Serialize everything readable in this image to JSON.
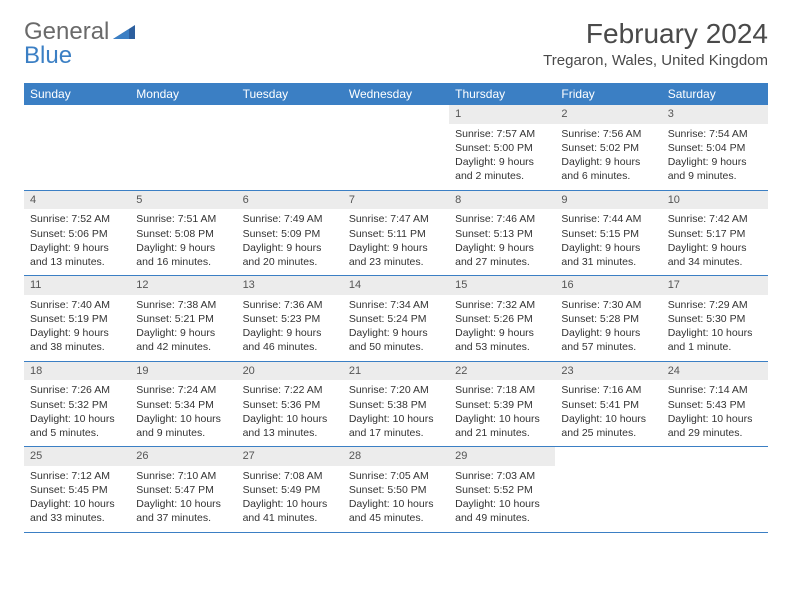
{
  "logo": {
    "general": "General",
    "blue": "Blue"
  },
  "title": "February 2024",
  "location": "Tregaron, Wales, United Kingdom",
  "colors": {
    "header_bg": "#3b7fc4",
    "header_text": "#ffffff",
    "daynum_bg": "#ececec",
    "daynum_text": "#555555",
    "body_text": "#333333",
    "border": "#3b7fc4",
    "page_bg": "#ffffff"
  },
  "dow": [
    "Sunday",
    "Monday",
    "Tuesday",
    "Wednesday",
    "Thursday",
    "Friday",
    "Saturday"
  ],
  "weeks": [
    [
      null,
      null,
      null,
      null,
      {
        "n": "1",
        "sunrise": "Sunrise: 7:57 AM",
        "sunset": "Sunset: 5:00 PM",
        "daylight": "Daylight: 9 hours and 2 minutes."
      },
      {
        "n": "2",
        "sunrise": "Sunrise: 7:56 AM",
        "sunset": "Sunset: 5:02 PM",
        "daylight": "Daylight: 9 hours and 6 minutes."
      },
      {
        "n": "3",
        "sunrise": "Sunrise: 7:54 AM",
        "sunset": "Sunset: 5:04 PM",
        "daylight": "Daylight: 9 hours and 9 minutes."
      }
    ],
    [
      {
        "n": "4",
        "sunrise": "Sunrise: 7:52 AM",
        "sunset": "Sunset: 5:06 PM",
        "daylight": "Daylight: 9 hours and 13 minutes."
      },
      {
        "n": "5",
        "sunrise": "Sunrise: 7:51 AM",
        "sunset": "Sunset: 5:08 PM",
        "daylight": "Daylight: 9 hours and 16 minutes."
      },
      {
        "n": "6",
        "sunrise": "Sunrise: 7:49 AM",
        "sunset": "Sunset: 5:09 PM",
        "daylight": "Daylight: 9 hours and 20 minutes."
      },
      {
        "n": "7",
        "sunrise": "Sunrise: 7:47 AM",
        "sunset": "Sunset: 5:11 PM",
        "daylight": "Daylight: 9 hours and 23 minutes."
      },
      {
        "n": "8",
        "sunrise": "Sunrise: 7:46 AM",
        "sunset": "Sunset: 5:13 PM",
        "daylight": "Daylight: 9 hours and 27 minutes."
      },
      {
        "n": "9",
        "sunrise": "Sunrise: 7:44 AM",
        "sunset": "Sunset: 5:15 PM",
        "daylight": "Daylight: 9 hours and 31 minutes."
      },
      {
        "n": "10",
        "sunrise": "Sunrise: 7:42 AM",
        "sunset": "Sunset: 5:17 PM",
        "daylight": "Daylight: 9 hours and 34 minutes."
      }
    ],
    [
      {
        "n": "11",
        "sunrise": "Sunrise: 7:40 AM",
        "sunset": "Sunset: 5:19 PM",
        "daylight": "Daylight: 9 hours and 38 minutes."
      },
      {
        "n": "12",
        "sunrise": "Sunrise: 7:38 AM",
        "sunset": "Sunset: 5:21 PM",
        "daylight": "Daylight: 9 hours and 42 minutes."
      },
      {
        "n": "13",
        "sunrise": "Sunrise: 7:36 AM",
        "sunset": "Sunset: 5:23 PM",
        "daylight": "Daylight: 9 hours and 46 minutes."
      },
      {
        "n": "14",
        "sunrise": "Sunrise: 7:34 AM",
        "sunset": "Sunset: 5:24 PM",
        "daylight": "Daylight: 9 hours and 50 minutes."
      },
      {
        "n": "15",
        "sunrise": "Sunrise: 7:32 AM",
        "sunset": "Sunset: 5:26 PM",
        "daylight": "Daylight: 9 hours and 53 minutes."
      },
      {
        "n": "16",
        "sunrise": "Sunrise: 7:30 AM",
        "sunset": "Sunset: 5:28 PM",
        "daylight": "Daylight: 9 hours and 57 minutes."
      },
      {
        "n": "17",
        "sunrise": "Sunrise: 7:29 AM",
        "sunset": "Sunset: 5:30 PM",
        "daylight": "Daylight: 10 hours and 1 minute."
      }
    ],
    [
      {
        "n": "18",
        "sunrise": "Sunrise: 7:26 AM",
        "sunset": "Sunset: 5:32 PM",
        "daylight": "Daylight: 10 hours and 5 minutes."
      },
      {
        "n": "19",
        "sunrise": "Sunrise: 7:24 AM",
        "sunset": "Sunset: 5:34 PM",
        "daylight": "Daylight: 10 hours and 9 minutes."
      },
      {
        "n": "20",
        "sunrise": "Sunrise: 7:22 AM",
        "sunset": "Sunset: 5:36 PM",
        "daylight": "Daylight: 10 hours and 13 minutes."
      },
      {
        "n": "21",
        "sunrise": "Sunrise: 7:20 AM",
        "sunset": "Sunset: 5:38 PM",
        "daylight": "Daylight: 10 hours and 17 minutes."
      },
      {
        "n": "22",
        "sunrise": "Sunrise: 7:18 AM",
        "sunset": "Sunset: 5:39 PM",
        "daylight": "Daylight: 10 hours and 21 minutes."
      },
      {
        "n": "23",
        "sunrise": "Sunrise: 7:16 AM",
        "sunset": "Sunset: 5:41 PM",
        "daylight": "Daylight: 10 hours and 25 minutes."
      },
      {
        "n": "24",
        "sunrise": "Sunrise: 7:14 AM",
        "sunset": "Sunset: 5:43 PM",
        "daylight": "Daylight: 10 hours and 29 minutes."
      }
    ],
    [
      {
        "n": "25",
        "sunrise": "Sunrise: 7:12 AM",
        "sunset": "Sunset: 5:45 PM",
        "daylight": "Daylight: 10 hours and 33 minutes."
      },
      {
        "n": "26",
        "sunrise": "Sunrise: 7:10 AM",
        "sunset": "Sunset: 5:47 PM",
        "daylight": "Daylight: 10 hours and 37 minutes."
      },
      {
        "n": "27",
        "sunrise": "Sunrise: 7:08 AM",
        "sunset": "Sunset: 5:49 PM",
        "daylight": "Daylight: 10 hours and 41 minutes."
      },
      {
        "n": "28",
        "sunrise": "Sunrise: 7:05 AM",
        "sunset": "Sunset: 5:50 PM",
        "daylight": "Daylight: 10 hours and 45 minutes."
      },
      {
        "n": "29",
        "sunrise": "Sunrise: 7:03 AM",
        "sunset": "Sunset: 5:52 PM",
        "daylight": "Daylight: 10 hours and 49 minutes."
      },
      null,
      null
    ]
  ]
}
